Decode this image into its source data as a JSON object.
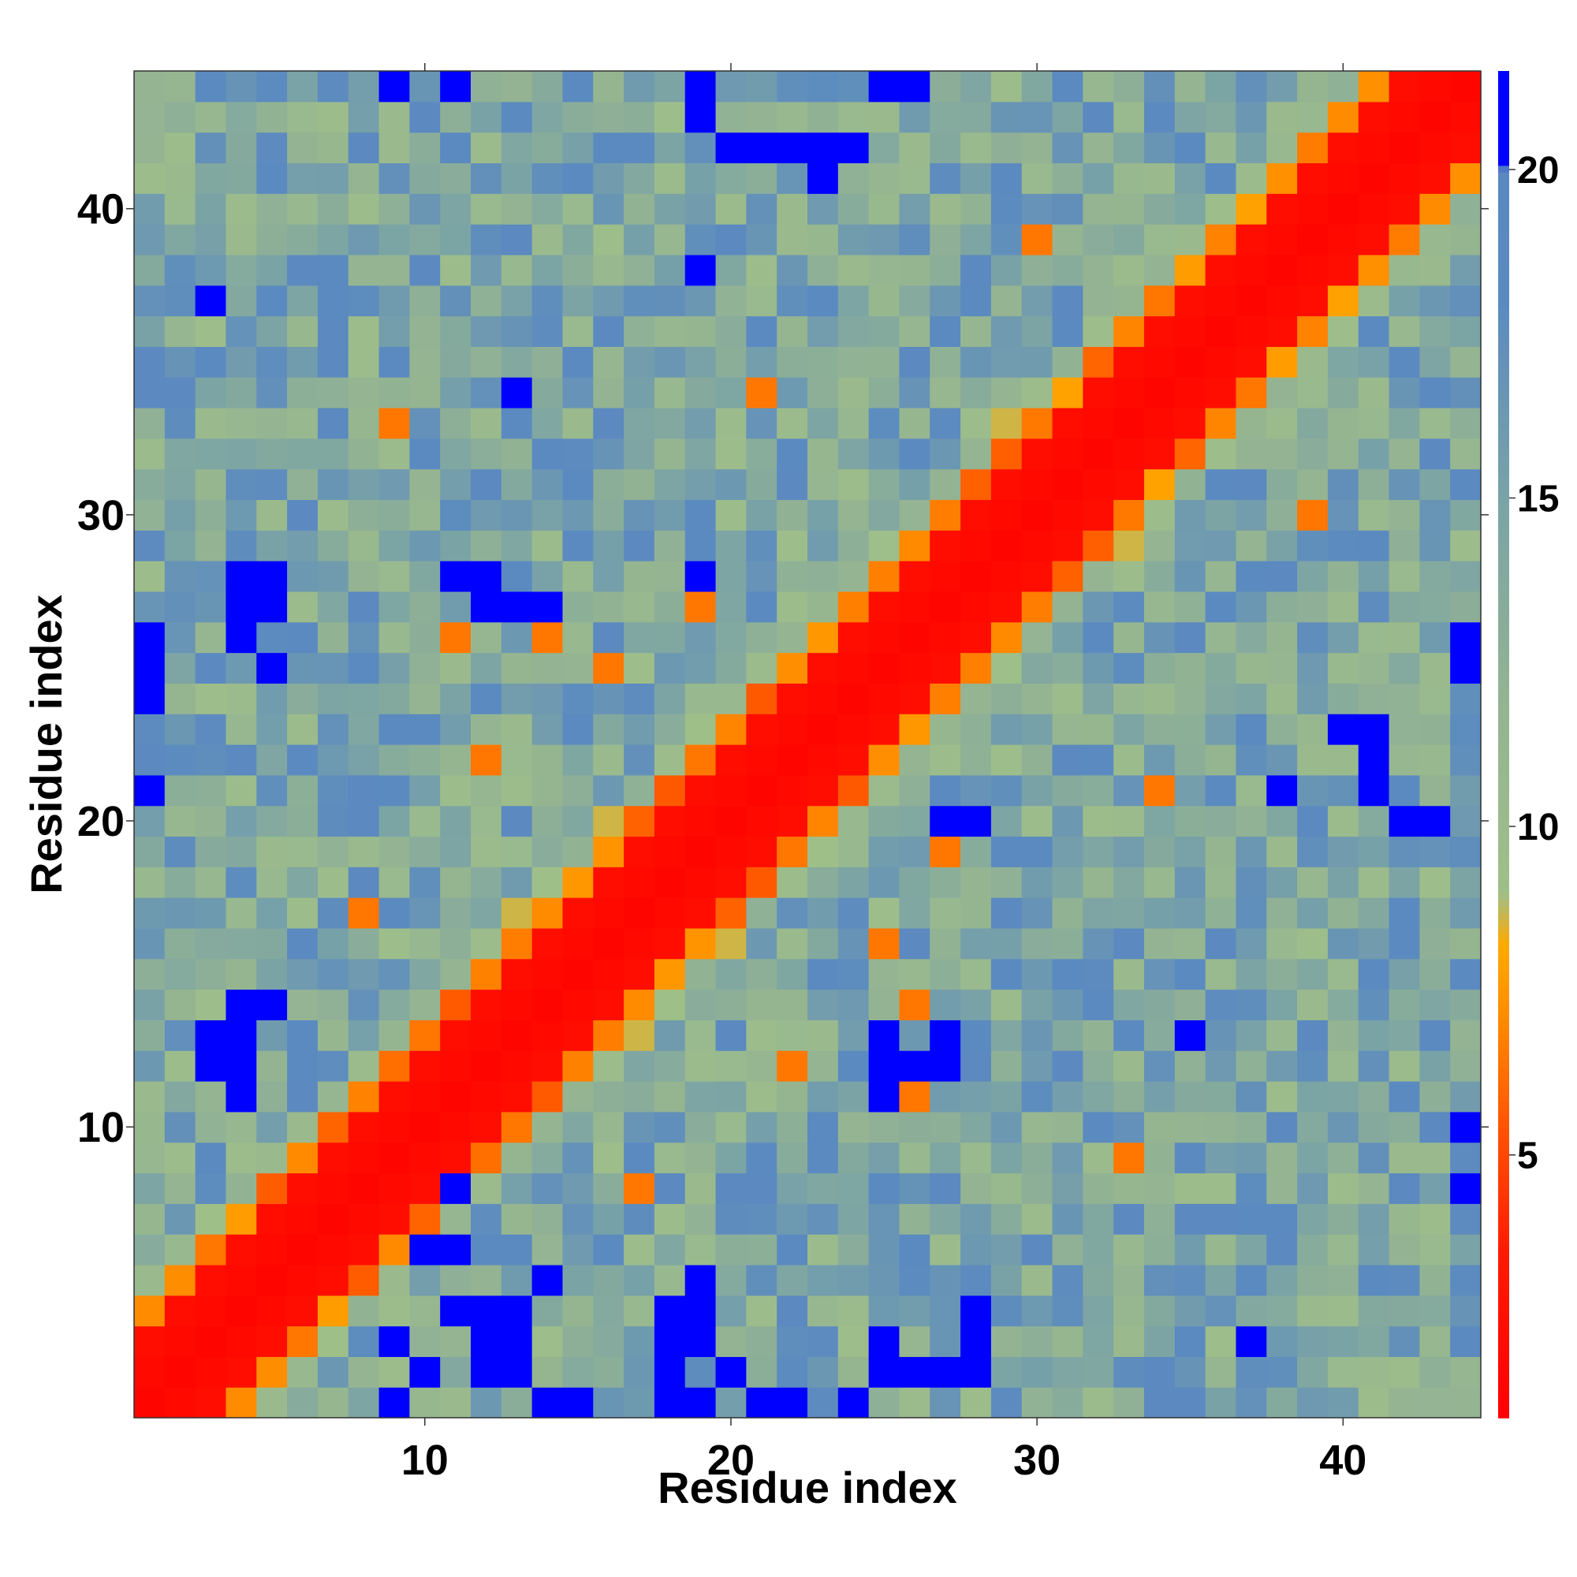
{
  "chart_data": {
    "type": "heatmap",
    "title": "",
    "xlabel": "Residue index",
    "ylabel": "Residue index",
    "n": 44,
    "x_range": [
      1,
      44
    ],
    "y_range": [
      1,
      44
    ],
    "x_ticks": [
      10,
      20,
      30,
      40
    ],
    "y_ticks": [
      10,
      20,
      30,
      40
    ],
    "colorbar": {
      "ticks": [
        5,
        10,
        15,
        20
      ],
      "range": [
        1,
        21.5
      ],
      "stops": [
        {
          "value": 1,
          "color": "#ff0000"
        },
        {
          "value": 3.5,
          "color": "#ff1a00"
        },
        {
          "value": 5.5,
          "color": "#ff5500"
        },
        {
          "value": 7,
          "color": "#ff8800"
        },
        {
          "value": 8.2,
          "color": "#ffaa00"
        },
        {
          "value": 9,
          "color": "#9fbf89"
        },
        {
          "value": 12,
          "color": "#93b393"
        },
        {
          "value": 15,
          "color": "#7aa3a6"
        },
        {
          "value": 18,
          "color": "#5b8ac0"
        },
        {
          "value": 20,
          "color": "#5a88c0"
        },
        {
          "value": 20.1,
          "color": "#0000ff"
        },
        {
          "value": 21.5,
          "color": "#0000ff"
        }
      ]
    },
    "description_values": "Pairwise residue distance map; values estimated from color (red ≈ 1-3 on diagonal, orange ≈ 5-8, green ≈ 9-13, steel-blue ≈ 15-19, blue ≈ 21).",
    "near_orange_offsets": [
      [
        3,
        6
      ],
      [
        6,
        3
      ],
      [
        8,
        17
      ],
      [
        17,
        8
      ],
      [
        11,
        26
      ],
      [
        26,
        11
      ],
      [
        16,
        25
      ],
      [
        25,
        16
      ],
      [
        21,
        34
      ],
      [
        34,
        21
      ],
      [
        9,
        33
      ],
      [
        33,
        9
      ],
      [
        30,
        39
      ],
      [
        39,
        30
      ],
      [
        14,
        26
      ],
      [
        26,
        14
      ],
      [
        19,
        27
      ],
      [
        27,
        19
      ],
      [
        12,
        22
      ],
      [
        22,
        12
      ]
    ],
    "blue_cells": [
      [
        1,
        21
      ],
      [
        1,
        26
      ],
      [
        1,
        24
      ],
      [
        1,
        25
      ],
      [
        5,
        14
      ],
      [
        4,
        14
      ],
      [
        3,
        12
      ],
      [
        4,
        13
      ],
      [
        3,
        13
      ],
      [
        12,
        4
      ],
      [
        13,
        4
      ],
      [
        13,
        3
      ],
      [
        12,
        3
      ],
      [
        5,
        28
      ],
      [
        4,
        28
      ],
      [
        4,
        27
      ],
      [
        5,
        27
      ],
      [
        4,
        26
      ],
      [
        5,
        25
      ],
      [
        9,
        1
      ],
      [
        10,
        2
      ],
      [
        12,
        2
      ],
      [
        13,
        2
      ],
      [
        14,
        1
      ],
      [
        15,
        1
      ],
      [
        18,
        1
      ],
      [
        18,
        2
      ],
      [
        19,
        1
      ],
      [
        20,
        2
      ],
      [
        21,
        1
      ],
      [
        22,
        1
      ],
      [
        25,
        2
      ],
      [
        26,
        2
      ],
      [
        27,
        2
      ],
      [
        28,
        2
      ],
      [
        24,
        1
      ],
      [
        25,
        3
      ],
      [
        28,
        3
      ],
      [
        28,
        4
      ],
      [
        18,
        3
      ],
      [
        18,
        4
      ],
      [
        19,
        3
      ],
      [
        19,
        4
      ],
      [
        19,
        5
      ],
      [
        11,
        8
      ],
      [
        12,
        3
      ],
      [
        12,
        4
      ],
      [
        13,
        4
      ],
      [
        14,
        5
      ],
      [
        11,
        6
      ],
      [
        10,
        6
      ],
      [
        9,
        3
      ],
      [
        4,
        12
      ],
      [
        4,
        11
      ],
      [
        11,
        4
      ],
      [
        26,
        12
      ],
      [
        25,
        12
      ],
      [
        25,
        13
      ],
      [
        25,
        11
      ],
      [
        27,
        12
      ],
      [
        27,
        13
      ],
      [
        35,
        13
      ],
      [
        27,
        20
      ],
      [
        28,
        20
      ],
      [
        38,
        21
      ],
      [
        41,
        21
      ],
      [
        41,
        22
      ],
      [
        41,
        23
      ],
      [
        42,
        20
      ],
      [
        43,
        20
      ],
      [
        44,
        26
      ],
      [
        44,
        25
      ],
      [
        44,
        10
      ],
      [
        44,
        8
      ],
      [
        40,
        23
      ],
      [
        19,
        28
      ],
      [
        19,
        38
      ],
      [
        13,
        34
      ],
      [
        12,
        28
      ],
      [
        11,
        28
      ],
      [
        12,
        27
      ],
      [
        13,
        27
      ],
      [
        14,
        27
      ],
      [
        3,
        37
      ],
      [
        20,
        42
      ],
      [
        21,
        42
      ],
      [
        22,
        42
      ],
      [
        23,
        42
      ],
      [
        24,
        42
      ],
      [
        23,
        41
      ],
      [
        9,
        44
      ],
      [
        11,
        44
      ],
      [
        19,
        43
      ],
      [
        19,
        44
      ],
      [
        25,
        44
      ],
      [
        26,
        44
      ],
      [
        37,
        3
      ]
    ]
  }
}
